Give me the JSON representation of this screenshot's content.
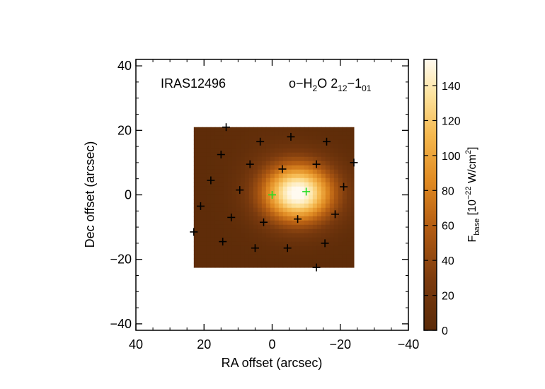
{
  "chart_data": {
    "type": "heatmap",
    "source_label": "IRAS12496",
    "line_label": {
      "base": "o−H",
      "sub1": "2",
      "mid": "O 2",
      "sub2": "12",
      "dash": "−1",
      "sub3": "01"
    },
    "xlabel": "RA offset (arcsec)",
    "ylabel": "Dec offset (arcsec)",
    "xlim": [
      40,
      -40
    ],
    "ylim": [
      -42,
      42
    ],
    "x_ticks": [
      40,
      20,
      0,
      -20,
      -40
    ],
    "y_ticks": [
      -40,
      -20,
      0,
      20,
      40
    ],
    "x_tick_labels": [
      "40",
      "20",
      "0",
      "−20",
      "−40"
    ],
    "y_tick_labels": [
      "−40",
      "−20",
      "0",
      "20",
      "40"
    ],
    "map_extent": {
      "ra": [
        23,
        -24
      ],
      "dec": [
        -22.5,
        21
      ]
    },
    "emission_peak": {
      "ra": -7.5,
      "dec": 0.5,
      "value": 155
    },
    "colorbar": {
      "range": [
        0,
        155
      ],
      "ticks": [
        0,
        20,
        40,
        60,
        80,
        100,
        120,
        140
      ],
      "label": {
        "main": "F",
        "sub": "base",
        "bracket": " [10",
        "sup1": "−22",
        "unit": " W/cm",
        "sup2": "2",
        "close": "]"
      }
    },
    "spaxels": [
      {
        "ra": 13.5,
        "dec": 21
      },
      {
        "ra": -5.5,
        "dec": 18
      },
      {
        "ra": 3.5,
        "dec": 16.5
      },
      {
        "ra": -16,
        "dec": 16.5
      },
      {
        "ra": 15,
        "dec": 12.5
      },
      {
        "ra": 6.5,
        "dec": 9.5
      },
      {
        "ra": -13,
        "dec": 9.5
      },
      {
        "ra": -24,
        "dec": 10
      },
      {
        "ra": -3,
        "dec": 8
      },
      {
        "ra": 18,
        "dec": 4.5
      },
      {
        "ra": 9.5,
        "dec": 1.5
      },
      {
        "ra": -21,
        "dec": 2.5
      },
      {
        "ra": 21,
        "dec": -3.5
      },
      {
        "ra": 12,
        "dec": -7
      },
      {
        "ra": 2.5,
        "dec": -8.5
      },
      {
        "ra": -7.5,
        "dec": -7.5
      },
      {
        "ra": -18.5,
        "dec": -6
      },
      {
        "ra": 23,
        "dec": -11.5
      },
      {
        "ra": 14.5,
        "dec": -14.5
      },
      {
        "ra": 5,
        "dec": -16.5
      },
      {
        "ra": -4.5,
        "dec": -16.5
      },
      {
        "ra": -15.5,
        "dec": -15
      },
      {
        "ra": -13,
        "dec": -22.5
      }
    ],
    "highlighted_spaxels": [
      {
        "ra": 0,
        "dec": 0
      },
      {
        "ra": -10,
        "dec": 1
      }
    ],
    "colors": {
      "marker": "#000000",
      "highlight": "#22dd22"
    }
  }
}
